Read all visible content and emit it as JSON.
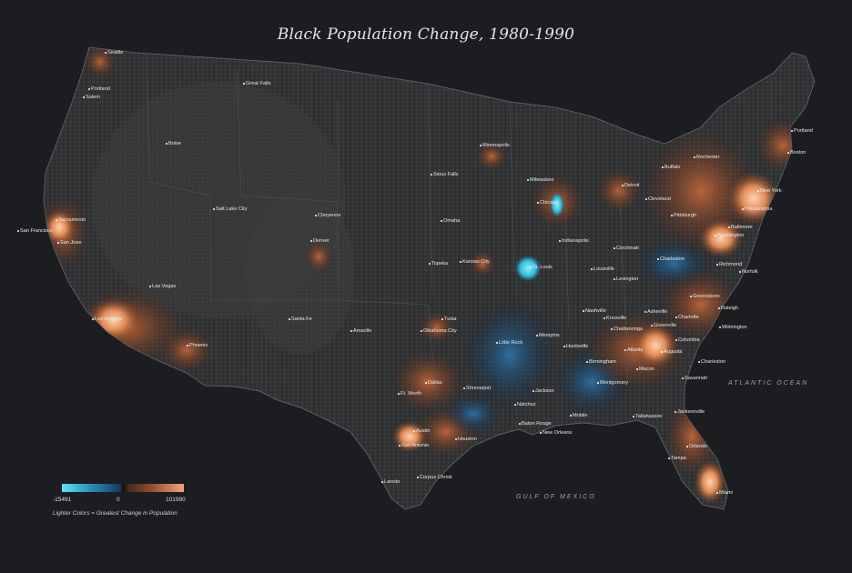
{
  "title": "Black Population Change, 1980-1990",
  "legend": {
    "min_label": "-15491",
    "zero_label": "0",
    "max_label": "101980",
    "note": "Lighter Colors = Greatest Change in Population",
    "colors": {
      "negative_light": "#5fe1f2",
      "negative_dark": "#173a5c",
      "positive_dark": "#8a4a2a",
      "positive_light": "#f1a478"
    }
  },
  "water_labels": {
    "atlantic": "ATLANTIC OCEAN",
    "gulf": "GULF OF MEXICO"
  },
  "cities": [
    {
      "id": "seattle",
      "name": "Seattle"
    },
    {
      "id": "portland-or",
      "name": "Portland"
    },
    {
      "id": "salem",
      "name": "Salem"
    },
    {
      "id": "great-falls",
      "name": "Great Falls"
    },
    {
      "id": "boise",
      "name": "Boise"
    },
    {
      "id": "minneapolis",
      "name": "Minneapolis"
    },
    {
      "id": "portland-me",
      "name": "Portland"
    },
    {
      "id": "boston",
      "name": "Boston"
    },
    {
      "id": "rochester",
      "name": "Rochester"
    },
    {
      "id": "buffalo",
      "name": "Buffalo"
    },
    {
      "id": "new-york",
      "name": "New York"
    },
    {
      "id": "philadelphia",
      "name": "Philadelphia"
    },
    {
      "id": "detroit",
      "name": "Detroit"
    },
    {
      "id": "milwaukee",
      "name": "Milwaukee"
    },
    {
      "id": "sioux-falls",
      "name": "Sioux Falls"
    },
    {
      "id": "chicago",
      "name": "Chicago"
    },
    {
      "id": "cleveland",
      "name": "Cleveland"
    },
    {
      "id": "pittsburgh",
      "name": "Pittsburgh"
    },
    {
      "id": "salt-lake-city",
      "name": "Salt Lake City"
    },
    {
      "id": "cheyenne",
      "name": "Cheyenne"
    },
    {
      "id": "omaha",
      "name": "Omaha"
    },
    {
      "id": "washington",
      "name": "Washington"
    },
    {
      "id": "baltimore",
      "name": "Baltimore"
    },
    {
      "id": "sacramento",
      "name": "Sacramento"
    },
    {
      "id": "san-francisco",
      "name": "San Francisco"
    },
    {
      "id": "san-jose",
      "name": "San Jose"
    },
    {
      "id": "denver",
      "name": "Denver"
    },
    {
      "id": "indianapolis",
      "name": "Indianapolis"
    },
    {
      "id": "cincinnati",
      "name": "Cincinnati"
    },
    {
      "id": "charleston-wv",
      "name": "Charleston"
    },
    {
      "id": "richmond",
      "name": "Richmond"
    },
    {
      "id": "norfolk",
      "name": "Norfolk"
    },
    {
      "id": "topeka",
      "name": "Topeka"
    },
    {
      "id": "kansas-city",
      "name": "Kansas City"
    },
    {
      "id": "st-louis",
      "name": "St. Louis"
    },
    {
      "id": "louisville",
      "name": "Louisville"
    },
    {
      "id": "lexington",
      "name": "Lexington"
    },
    {
      "id": "las-vegas",
      "name": "Las Vegas"
    },
    {
      "id": "greensboro",
      "name": "Greensboro"
    },
    {
      "id": "raleigh",
      "name": "Raleigh"
    },
    {
      "id": "los-angeles",
      "name": "Los Angeles"
    },
    {
      "id": "santa-fe",
      "name": "Santa Fe"
    },
    {
      "id": "tulsa",
      "name": "Tulsa"
    },
    {
      "id": "nashville",
      "name": "Nashville"
    },
    {
      "id": "knoxville",
      "name": "Knoxville"
    },
    {
      "id": "asheville",
      "name": "Asheville"
    },
    {
      "id": "charlotte",
      "name": "Charlotte"
    },
    {
      "id": "greenville",
      "name": "Greenville"
    },
    {
      "id": "wilmington",
      "name": "Wilmington"
    },
    {
      "id": "amarillo",
      "name": "Amarillo"
    },
    {
      "id": "oklahoma-city",
      "name": "Oklahoma City"
    },
    {
      "id": "memphis",
      "name": "Memphis"
    },
    {
      "id": "chattanooga",
      "name": "Chattanooga"
    },
    {
      "id": "phoenix",
      "name": "Phoenix"
    },
    {
      "id": "little-rock",
      "name": "Little Rock"
    },
    {
      "id": "huntsville",
      "name": "Huntsville"
    },
    {
      "id": "atlanta",
      "name": "Atlanta"
    },
    {
      "id": "columbia",
      "name": "Columbia"
    },
    {
      "id": "augusta",
      "name": "Augusta"
    },
    {
      "id": "birmingham",
      "name": "Birmingham"
    },
    {
      "id": "charleston-sc",
      "name": "Charleston"
    },
    {
      "id": "macon",
      "name": "Macon"
    },
    {
      "id": "dallas",
      "name": "Dallas"
    },
    {
      "id": "savannah",
      "name": "Savannah"
    },
    {
      "id": "montgomery",
      "name": "Montgomery"
    },
    {
      "id": "fort-worth",
      "name": "Ft. Worth"
    },
    {
      "id": "shreveport",
      "name": "Shreveport"
    },
    {
      "id": "jackson",
      "name": "Jackson"
    },
    {
      "id": "natchez",
      "name": "Natchez"
    },
    {
      "id": "mobile",
      "name": "Mobile"
    },
    {
      "id": "tallahassee",
      "name": "Tallahassee"
    },
    {
      "id": "jacksonville",
      "name": "Jacksonville"
    },
    {
      "id": "baton-rouge",
      "name": "Baton Rouge"
    },
    {
      "id": "new-orleans",
      "name": "New Orleans"
    },
    {
      "id": "austin",
      "name": "Austin"
    },
    {
      "id": "houston",
      "name": "Houston"
    },
    {
      "id": "san-antonio",
      "name": "San Antonio"
    },
    {
      "id": "orlando",
      "name": "Orlando"
    },
    {
      "id": "tampa",
      "name": "Tampa"
    },
    {
      "id": "corpus-christi",
      "name": "Corpus Christi"
    },
    {
      "id": "laredo",
      "name": "Laredo"
    },
    {
      "id": "miami",
      "name": "Miami"
    }
  ]
}
